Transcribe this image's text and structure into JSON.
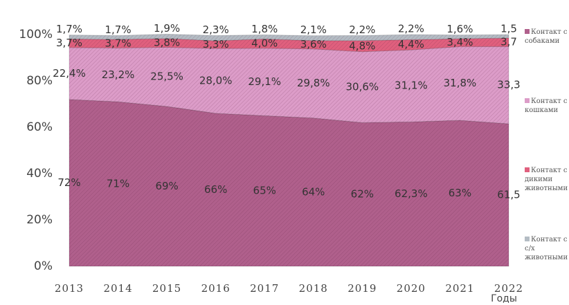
{
  "chart_data": {
    "type": "stacked_area",
    "x_label": "Годы",
    "categories": [
      "2013",
      "2014",
      "2015",
      "2016",
      "2017",
      "2018",
      "2019",
      "2020",
      "2021",
      "2022"
    ],
    "ylim": [
      0,
      100
    ],
    "yticks": [
      {
        "value": 0,
        "label": "0%"
      },
      {
        "value": 20,
        "label": "20%"
      },
      {
        "value": 40,
        "label": "40%"
      },
      {
        "value": 60,
        "label": "60%"
      },
      {
        "value": 80,
        "label": "80%"
      },
      {
        "value": 100,
        "label": "100%"
      }
    ],
    "legend": "right",
    "series": [
      {
        "name": "Контакт с собаками",
        "color": "#b0608c",
        "values": [
          72,
          71,
          69,
          66,
          65,
          64,
          62,
          62.3,
          63,
          61.5
        ],
        "value_labels": [
          "72%",
          "71%",
          "69%",
          "66%",
          "65%",
          "64%",
          "62%",
          "62,3%",
          "63%",
          "61,5"
        ]
      },
      {
        "name": "Контакт с кошками",
        "color": "#dc9cc8",
        "values": [
          22.4,
          23.2,
          25.5,
          28.0,
          29.1,
          29.8,
          30.6,
          31.1,
          31.8,
          33.3
        ],
        "value_labels": [
          "22,4%",
          "23,2%",
          "25,5%",
          "28,0%",
          "29,1%",
          "29,8%",
          "30,6%",
          "31,1%",
          "31,8%",
          "33,3"
        ]
      },
      {
        "name": "Контакт с дикими животными",
        "color": "#e0607e",
        "values": [
          3.7,
          3.7,
          3.8,
          3.3,
          4.0,
          3.6,
          4.8,
          4.4,
          3.4,
          3.7
        ],
        "value_labels": [
          "3,7%",
          "3,7%",
          "3,8%",
          "3,3%",
          "4,0%",
          "3,6%",
          "4,8%",
          "4,4%",
          "3,4%",
          "3,7"
        ]
      },
      {
        "name": "Контакт с с/х животными",
        "color": "#b4bcc4",
        "values": [
          1.7,
          1.7,
          1.9,
          2.3,
          1.8,
          2.1,
          2.2,
          2.2,
          1.6,
          1.5
        ],
        "value_labels": [
          "1,7%",
          "1,7%",
          "1,9%",
          "2,3%",
          "1,8%",
          "2,1%",
          "2,2%",
          "2,2%",
          "1,6%",
          "1,5"
        ]
      }
    ]
  }
}
